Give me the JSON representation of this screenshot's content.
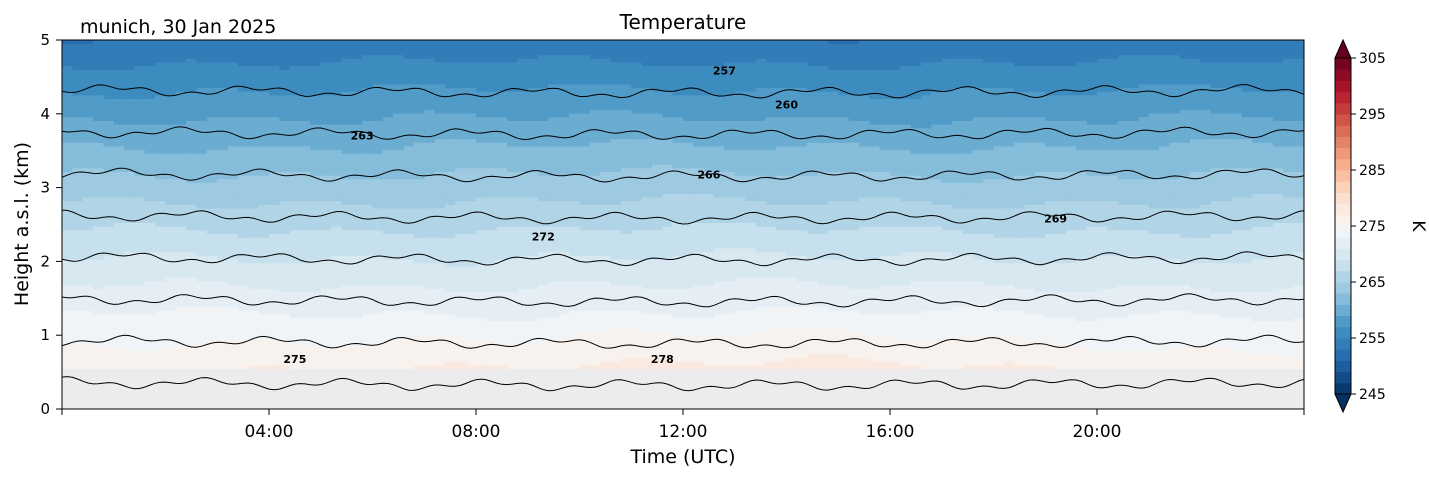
{
  "chart_data": {
    "type": "heatmap",
    "title": "Temperature",
    "subtitle": "munich, 30 Jan 2025",
    "xlabel": "Time (UTC)",
    "ylabel": "Height a.s.l. (km)",
    "xlim": [
      "00:00",
      "24:00"
    ],
    "ylim": [
      0,
      5
    ],
    "x_ticks": [
      "04:00",
      "08:00",
      "12:00",
      "16:00",
      "20:00"
    ],
    "y_ticks": [
      "0",
      "1",
      "2",
      "3",
      "4",
      "5"
    ],
    "x_tick_hours": [
      4,
      8,
      12,
      16,
      20
    ],
    "y_tick_values": [
      0,
      1,
      2,
      3,
      4,
      5
    ],
    "colorbar": {
      "label": "K",
      "range": [
        245,
        305
      ],
      "ticks": [
        "245",
        "255",
        "265",
        "275",
        "285",
        "295",
        "305"
      ],
      "tick_values": [
        245,
        255,
        265,
        275,
        285,
        295,
        305
      ],
      "colormap": "RdBu_r",
      "extend": "both"
    },
    "data_height_range_km": [
      0.55,
      5.0
    ],
    "no_data_color": "#ececec",
    "surface_temperature_k": 277,
    "lapse_rate_k_per_km": -5.3,
    "contour_interval_k": 3,
    "contour_levels": [
      257,
      260,
      263,
      266,
      269,
      272,
      275,
      278
    ],
    "contour_labels": [
      {
        "text": "257",
        "hour": 12.8,
        "km": 4.53
      },
      {
        "text": "260",
        "hour": 14.0,
        "km": 4.07
      },
      {
        "text": "263",
        "hour": 5.8,
        "km": 3.65
      },
      {
        "text": "266",
        "hour": 12.5,
        "km": 3.12
      },
      {
        "text": "269",
        "hour": 19.2,
        "km": 2.53
      },
      {
        "text": "272",
        "hour": 9.3,
        "km": 2.28
      },
      {
        "text": "275",
        "hour": 4.5,
        "km": 0.62
      },
      {
        "text": "278",
        "hour": 11.6,
        "km": 0.62
      }
    ]
  }
}
